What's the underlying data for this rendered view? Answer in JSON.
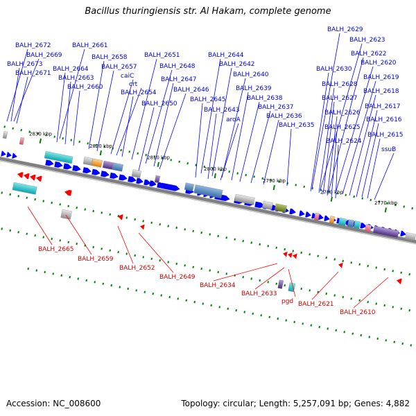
{
  "title": "Bacillus thuringiensis str. Al Hakam, complete genome",
  "footer": {
    "accession": "Accession: NC_008600",
    "summary": "Topology: circular; Length: 5,257,091 bp; Genes: 4,882"
  },
  "colors": {
    "forward": "#0000ff",
    "reverse": "#ff0000",
    "backbone": "#808080",
    "tick": "#008000",
    "forward_label": "#0000cc",
    "reverse_label": "#cc0000"
  },
  "kbp_marks": [
    "2830 kbp",
    "2820 kbp",
    "2810 kbp",
    "2800 kbp",
    "2790 kbp",
    "2780 kbp",
    "2770 kbp"
  ],
  "forward_genes": [
    "BALH_2672",
    "BALH_2669",
    "BALH_2673",
    "BALH_2671",
    "BALH_2661",
    "BALH_2664",
    "BALH_2663",
    "BALH_2660",
    "BALH_2658",
    "BALH_2657",
    "caiC",
    "crt",
    "BALH_2654",
    "BALH_2651",
    "BALH_2648",
    "BALH_2647",
    "BALH_2646",
    "BALH_2650",
    "BALH_2644",
    "BALH_2642",
    "BALH_2640",
    "BALH_2645",
    "BALH_2643",
    "aroA",
    "BALH_2639",
    "BALH_2638",
    "BALH_2637",
    "BALH_2636",
    "BALH_2635",
    "BALH_2629",
    "BALH_2623",
    "BALH_2622",
    "BALH_2620",
    "BALH_2630",
    "BALH_2619",
    "BALH_2628",
    "BALH_2618",
    "BALH_2627",
    "BALH_2617",
    "BALH_2626",
    "BALH_2616",
    "BALH_2625",
    "BALH_2615",
    "BALH_2624",
    "ssuB"
  ],
  "reverse_genes": [
    "BALH_2665",
    "BALH_2659",
    "BALH_2652",
    "BALH_2649",
    "BALH_2634",
    "BALH_2633",
    "pgd",
    "BALH_2621",
    "BALH_2610"
  ]
}
